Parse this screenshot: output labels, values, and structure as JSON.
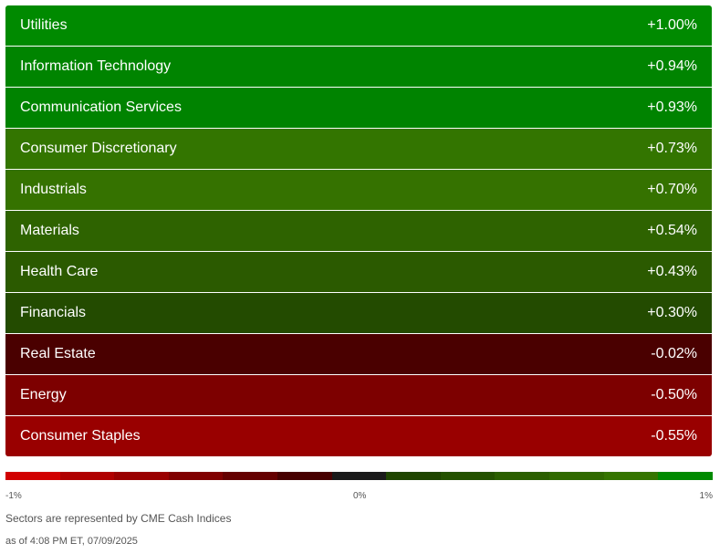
{
  "sectors": [
    {
      "name": "Utilities",
      "change": "+1.00%",
      "color": "#008a00"
    },
    {
      "name": "Information Technology",
      "change": "+0.94%",
      "color": "#008400"
    },
    {
      "name": "Communication Services",
      "change": "+0.93%",
      "color": "#008300"
    },
    {
      "name": "Consumer Discretionary",
      "change": "+0.73%",
      "color": "#337500"
    },
    {
      "name": "Industrials",
      "change": "+0.70%",
      "color": "#357200"
    },
    {
      "name": "Materials",
      "change": "+0.54%",
      "color": "#2e6300"
    },
    {
      "name": "Health Care",
      "change": "+0.43%",
      "color": "#2b5a00"
    },
    {
      "name": "Financials",
      "change": "+0.30%",
      "color": "#234b00"
    },
    {
      "name": "Real Estate",
      "change": "-0.02%",
      "color": "#4a0000"
    },
    {
      "name": "Energy",
      "change": "-0.50%",
      "color": "#7d0000"
    },
    {
      "name": "Consumer Staples",
      "change": "-0.55%",
      "color": "#990000"
    }
  ],
  "scale": {
    "min_label": "-1%",
    "mid_label": "0%",
    "max_label": "1%",
    "colors": [
      "#d10000",
      "#b00000",
      "#9a0000",
      "#800000",
      "#650000",
      "#470000",
      "#1a1a1a",
      "#1f4500",
      "#245200",
      "#2b5f00",
      "#306a00",
      "#357500",
      "#008a00"
    ]
  },
  "footnote": "Sectors are represented by CME Cash Indices",
  "timestamp": "as of 4:08 PM ET, 07/09/2025"
}
